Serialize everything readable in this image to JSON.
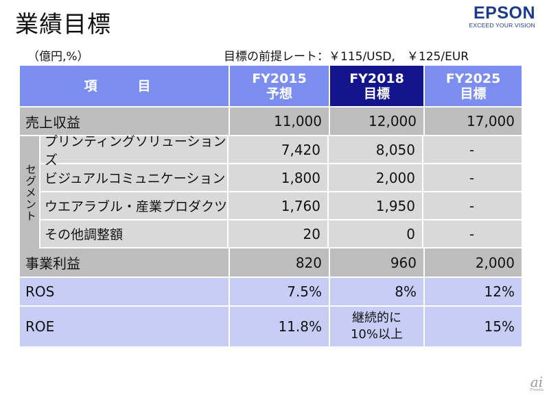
{
  "title": "業績目標",
  "logo": {
    "name": "EPSON",
    "tagline": "EXCEED YOUR VISION"
  },
  "unit_note": "（億円,%）",
  "rate_note": "目標の前提レート：￥115/USD,　￥125/EUR",
  "header": {
    "item": "項　目",
    "col1": [
      "FY2015",
      "予想"
    ],
    "col2": [
      "FY2018",
      "目標"
    ],
    "col3": [
      "FY2025",
      "目標"
    ]
  },
  "revenue": {
    "label": "売上収益",
    "v1": "11,000",
    "v2": "12,000",
    "v3": "17,000"
  },
  "segment_label": "セグメント",
  "segments": [
    {
      "label": "プリンティングソリューションズ",
      "v1": "7,420",
      "v2": "8,050",
      "v3": "-"
    },
    {
      "label": "ビジュアルコミュニケーション",
      "v1": "1,800",
      "v2": "2,000",
      "v3": "-"
    },
    {
      "label": "ウエアラブル・産業プロダクツ",
      "v1": "1,760",
      "v2": "1,950",
      "v3": "-"
    },
    {
      "label": "その他調整額",
      "v1": "20",
      "v2": "0",
      "v3": "-"
    }
  ],
  "op_profit": {
    "label": "事業利益",
    "v1": "820",
    "v2": "960",
    "v3": "2,000"
  },
  "ros": {
    "label": "ROS",
    "v1": "7.5%",
    "v2": "8%",
    "v3": "12%"
  },
  "roe": {
    "label": "ROE",
    "v1": "11.8%",
    "v2": [
      "継続的に",
      "10%以上"
    ],
    "v3": "15%"
  },
  "watermark": {
    "big": "ai",
    "small": "ITmedia"
  }
}
